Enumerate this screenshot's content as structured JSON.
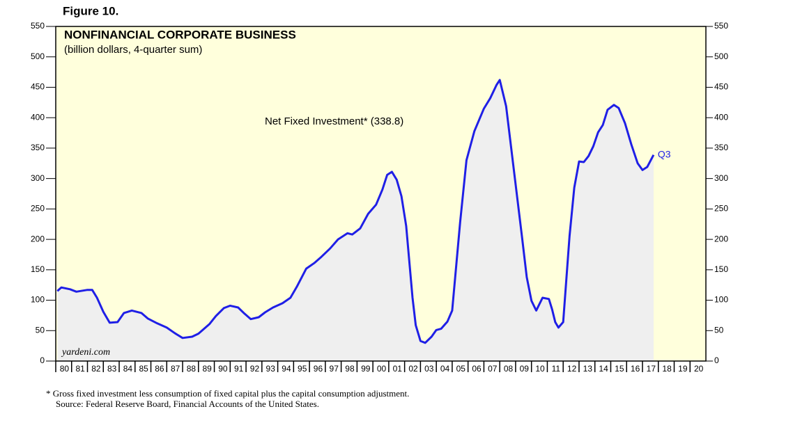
{
  "figure_label": "Figure 10.",
  "chart_data": {
    "type": "area-line",
    "title": "NONFINANCIAL CORPORATE BUSINESS",
    "subtitle": "(billion dollars, 4-quarter sum)",
    "annotation": "Net Fixed Investment* (338.8)",
    "end_label": "Q3",
    "watermark": "yardeni.com",
    "color": "#1f1fe6",
    "fill": "#efefef",
    "background": "#ffffdc",
    "x": [
      1980.1,
      1980.35,
      1980.9,
      1981.3,
      1982.0,
      1982.3,
      1982.6,
      1983.0,
      1983.4,
      1983.9,
      1984.3,
      1984.8,
      1985.4,
      1985.8,
      1986.4,
      1987.0,
      1987.5,
      1988.0,
      1988.6,
      1989.0,
      1989.7,
      1990.1,
      1990.6,
      1991.0,
      1991.5,
      1991.9,
      1992.3,
      1992.8,
      1993.2,
      1993.7,
      1994.3,
      1994.8,
      1995.2,
      1995.8,
      1996.3,
      1996.7,
      1997.3,
      1997.8,
      1998.4,
      1998.7,
      1999.2,
      1999.7,
      2000.2,
      2000.6,
      2000.9,
      2001.2,
      2001.5,
      2001.8,
      2002.1,
      2002.5,
      2002.7,
      2003.0,
      2003.3,
      2003.7,
      2004.0,
      2004.3,
      2004.7,
      2005.0,
      2005.5,
      2005.9,
      2006.4,
      2007.0,
      2007.4,
      2007.8,
      2008.0,
      2008.4,
      2009.1,
      2009.4,
      2009.7,
      2010.0,
      2010.3,
      2010.7,
      2011.1,
      2011.3,
      2011.5,
      2011.7,
      2012.0,
      2012.4,
      2012.7,
      2013.0,
      2013.3,
      2013.6,
      2013.9,
      2014.2,
      2014.5,
      2014.8,
      2015.2,
      2015.5,
      2015.9,
      2016.3,
      2016.7,
      2017.0,
      2017.3,
      2017.7
    ],
    "values": [
      115,
      121,
      118,
      114,
      117,
      117,
      104,
      81,
      63,
      64,
      79,
      83,
      79,
      70,
      62,
      55,
      46,
      38,
      40,
      45,
      61,
      74,
      87,
      91,
      88,
      78,
      69,
      72,
      80,
      88,
      95,
      104,
      122,
      152,
      161,
      170,
      185,
      200,
      210,
      208,
      218,
      242,
      257,
      282,
      306,
      311,
      298,
      271,
      222,
      104,
      59,
      33,
      30,
      40,
      51,
      53,
      65,
      83,
      228,
      330,
      378,
      415,
      432,
      454,
      462,
      419,
      269,
      205,
      138,
      99,
      83,
      104,
      102,
      85,
      64,
      55,
      64,
      205,
      285,
      328,
      327,
      337,
      353,
      376,
      388,
      413,
      421,
      416,
      391,
      356,
      325,
      314,
      319,
      338.8
    ],
    "xlim": [
      1980,
      2021
    ],
    "xticks": [
      {
        "value": 1980,
        "label": "80"
      },
      {
        "value": 1981,
        "label": "81"
      },
      {
        "value": 1982,
        "label": "82"
      },
      {
        "value": 1983,
        "label": "83"
      },
      {
        "value": 1984,
        "label": "84"
      },
      {
        "value": 1985,
        "label": "85"
      },
      {
        "value": 1986,
        "label": "86"
      },
      {
        "value": 1987,
        "label": "87"
      },
      {
        "value": 1988,
        "label": "88"
      },
      {
        "value": 1989,
        "label": "89"
      },
      {
        "value": 1990,
        "label": "90"
      },
      {
        "value": 1991,
        "label": "91"
      },
      {
        "value": 1992,
        "label": "92"
      },
      {
        "value": 1993,
        "label": "93"
      },
      {
        "value": 1994,
        "label": "94"
      },
      {
        "value": 1995,
        "label": "95"
      },
      {
        "value": 1996,
        "label": "96"
      },
      {
        "value": 1997,
        "label": "97"
      },
      {
        "value": 1998,
        "label": "98"
      },
      {
        "value": 1999,
        "label": "99"
      },
      {
        "value": 2000,
        "label": "00"
      },
      {
        "value": 2001,
        "label": "01"
      },
      {
        "value": 2002,
        "label": "02"
      },
      {
        "value": 2003,
        "label": "03"
      },
      {
        "value": 2004,
        "label": "04"
      },
      {
        "value": 2005,
        "label": "05"
      },
      {
        "value": 2006,
        "label": "06"
      },
      {
        "value": 2007,
        "label": "07"
      },
      {
        "value": 2008,
        "label": "08"
      },
      {
        "value": 2009,
        "label": "09"
      },
      {
        "value": 2010,
        "label": "10"
      },
      {
        "value": 2011,
        "label": "11"
      },
      {
        "value": 2012,
        "label": "12"
      },
      {
        "value": 2013,
        "label": "13"
      },
      {
        "value": 2014,
        "label": "14"
      },
      {
        "value": 2015,
        "label": "15"
      },
      {
        "value": 2016,
        "label": "16"
      },
      {
        "value": 2017,
        "label": "17"
      },
      {
        "value": 2018,
        "label": "18"
      },
      {
        "value": 2019,
        "label": "19"
      },
      {
        "value": 2020,
        "label": "20"
      }
    ],
    "ylim": [
      0,
      550
    ],
    "yticks": [
      0,
      50,
      100,
      150,
      200,
      250,
      300,
      350,
      400,
      450,
      500,
      550
    ]
  },
  "notes": [
    "*  Gross fixed investment less consumption of fixed capital plus the capital consumption adjustment.",
    "Source: Federal Reserve Board, Financial Accounts of the United States."
  ]
}
